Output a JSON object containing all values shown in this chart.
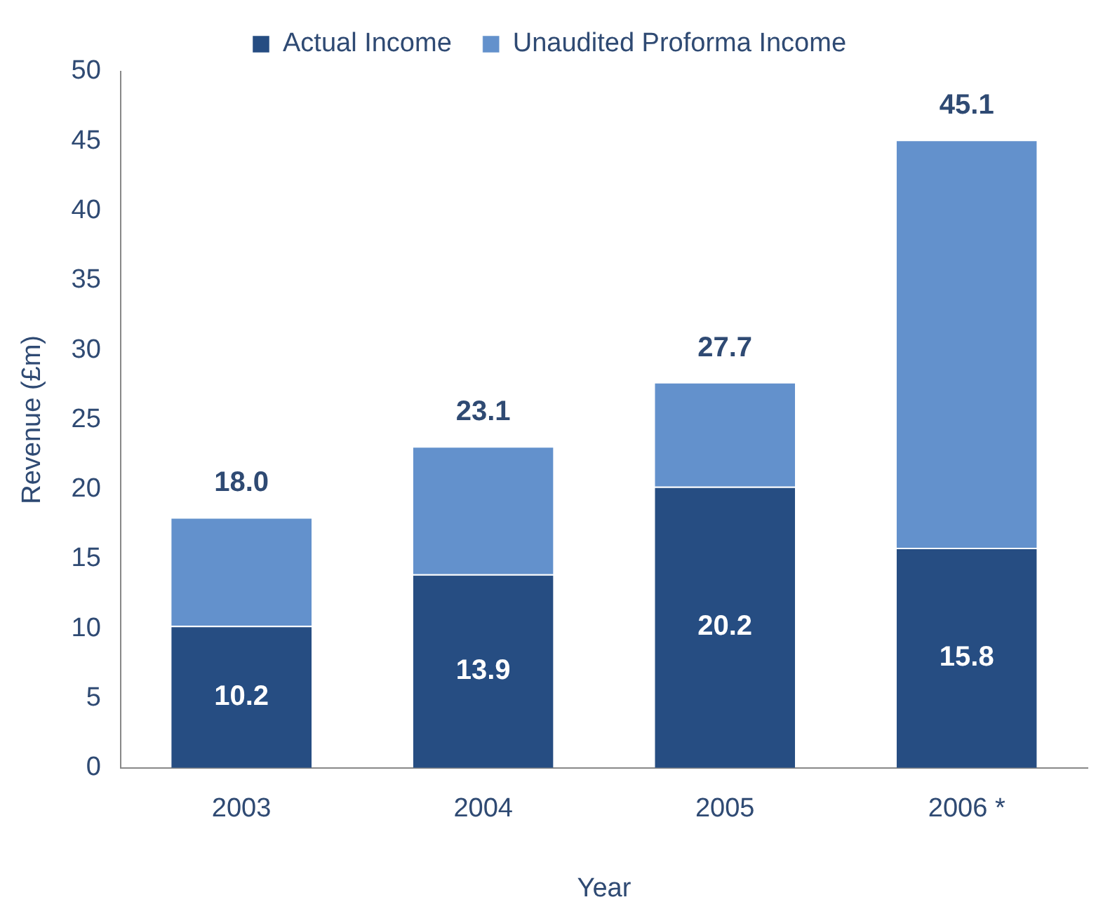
{
  "chart_data": {
    "type": "bar",
    "stacked": true,
    "xlabel": "Year",
    "ylabel": "Revenue (£m)",
    "categories": [
      "2003",
      "2004",
      "2005",
      "2006 *"
    ],
    "series": [
      {
        "name": "Actual Income",
        "color": "#264d82",
        "values": [
          10.2,
          13.9,
          20.2,
          15.8
        ],
        "value_labels": [
          "10.2",
          "13.9",
          "20.2",
          "15.8"
        ]
      },
      {
        "name": "Unaudited Proforma Income",
        "color": "#6391cc",
        "values": [
          7.8,
          9.2,
          7.5,
          29.3
        ]
      }
    ],
    "totals": [
      "18.0",
      "23.1",
      "27.7",
      "45.1"
    ],
    "ylim": [
      0,
      50
    ],
    "yticks": [
      0,
      5,
      10,
      15,
      20,
      25,
      30,
      35,
      40,
      45,
      50
    ],
    "grid": false,
    "legend": "top"
  }
}
